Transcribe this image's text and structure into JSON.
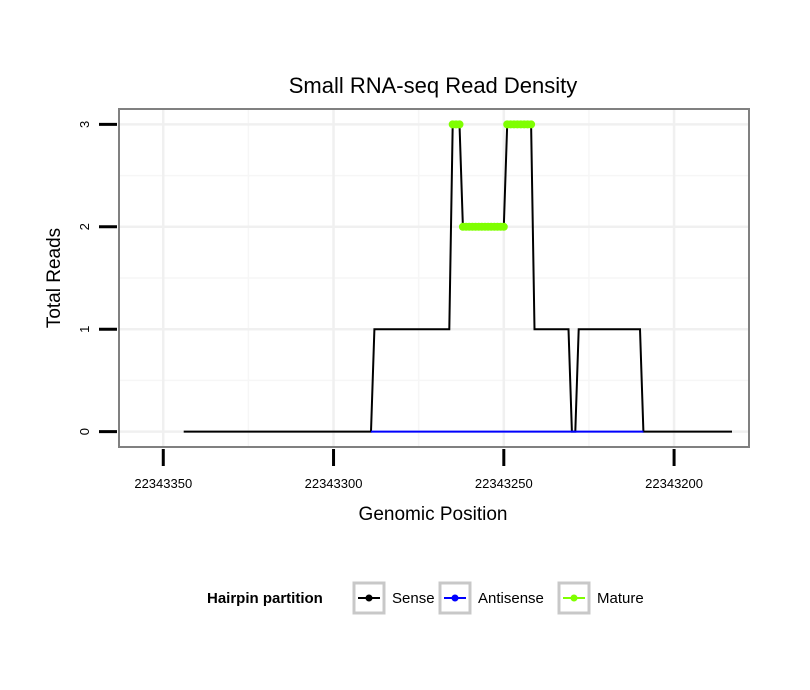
{
  "chart_data": {
    "type": "line",
    "title": "Small RNA-seq Read Density",
    "xlabel": "Genomic Position",
    "ylabel": "Total Reads",
    "x_reversed": true,
    "xlim": [
      22343363,
      22343178
    ],
    "ylim": [
      -0.15,
      3.15
    ],
    "x_ticks": [
      22343350,
      22343300,
      22343250,
      22343200
    ],
    "x_tick_labels": [
      "22343350",
      "22343300",
      "22343250",
      "22343200"
    ],
    "y_ticks": [
      0,
      1,
      2,
      3
    ],
    "y_tick_labels": [
      "0",
      "1",
      "2",
      "3"
    ],
    "grid": true,
    "legend": {
      "title": "Hairpin partition",
      "position": "bottom",
      "entries": [
        "Sense",
        "Antisense",
        "Mature"
      ]
    },
    "series": [
      {
        "name": "Sense",
        "color": "#000000",
        "markers": false,
        "x": [
          22343344,
          22343289,
          22343288,
          22343266,
          22343265,
          22343263,
          22343262,
          22343250,
          22343249,
          22343242,
          22343241,
          22343231,
          22343230,
          22343229,
          22343228,
          22343210,
          22343209,
          22343183
        ],
        "y": [
          0,
          0,
          1,
          1,
          3,
          3,
          2,
          2,
          3,
          3,
          1,
          1,
          0,
          0,
          1,
          1,
          0,
          0
        ]
      },
      {
        "name": "Antisense",
        "color": "#0000ff",
        "markers": false,
        "x": [
          22343289,
          22343209
        ],
        "y": [
          0,
          0
        ]
      },
      {
        "name": "Mature",
        "color": "#7fff00",
        "markers": true,
        "segments": [
          {
            "x": [
              22343265,
              22343263
            ],
            "y": [
              3,
              3
            ]
          },
          {
            "x": [
              22343262,
              22343250
            ],
            "y": [
              2,
              2
            ]
          },
          {
            "x": [
              22343249,
              22343242
            ],
            "y": [
              3,
              3
            ]
          }
        ]
      }
    ]
  }
}
